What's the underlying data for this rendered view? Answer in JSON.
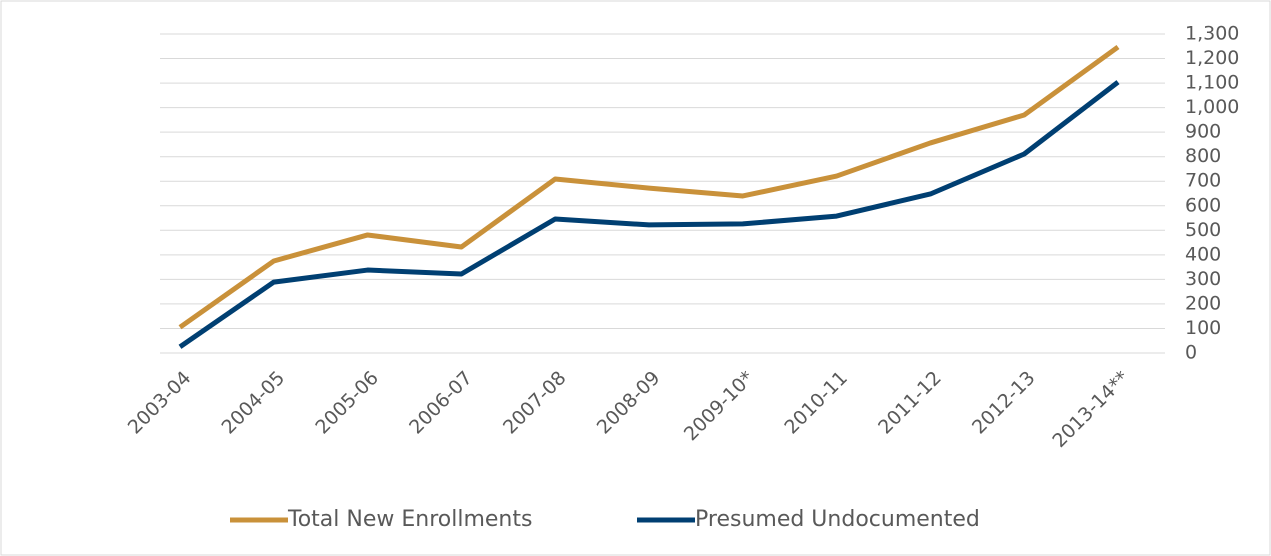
{
  "chart_data": {
    "type": "line",
    "categories": [
      "2003-04",
      "2004-05",
      "2005-06",
      "2006-07",
      "2007-08",
      "2008-09",
      "2009-10*",
      "2010-11",
      "2011-12",
      "2012-13",
      "2013-14**"
    ],
    "series": [
      {
        "name": "Total New Enrollments",
        "color": "#c9913a",
        "values": [
          105,
          375,
          481,
          432,
          709,
          672,
          640,
          721,
          856,
          970,
          1247
        ]
      },
      {
        "name": "Presumed Undocumented",
        "color": "#003f72",
        "values": [
          25,
          289,
          338,
          322,
          546,
          522,
          526,
          558,
          648,
          811,
          1104
        ]
      }
    ],
    "ylim": [
      0,
      1300
    ],
    "yticks": [
      0,
      100,
      200,
      300,
      400,
      500,
      600,
      700,
      800,
      900,
      {
        "value": 1000,
        "label": "1,000"
      },
      {
        "value": 1100,
        "label": "1,100"
      },
      {
        "value": 1200,
        "label": "1,200"
      },
      {
        "value": 1300,
        "label": "1,300"
      }
    ],
    "grid": true,
    "y_axis_side": "right",
    "legend": "bottom"
  }
}
